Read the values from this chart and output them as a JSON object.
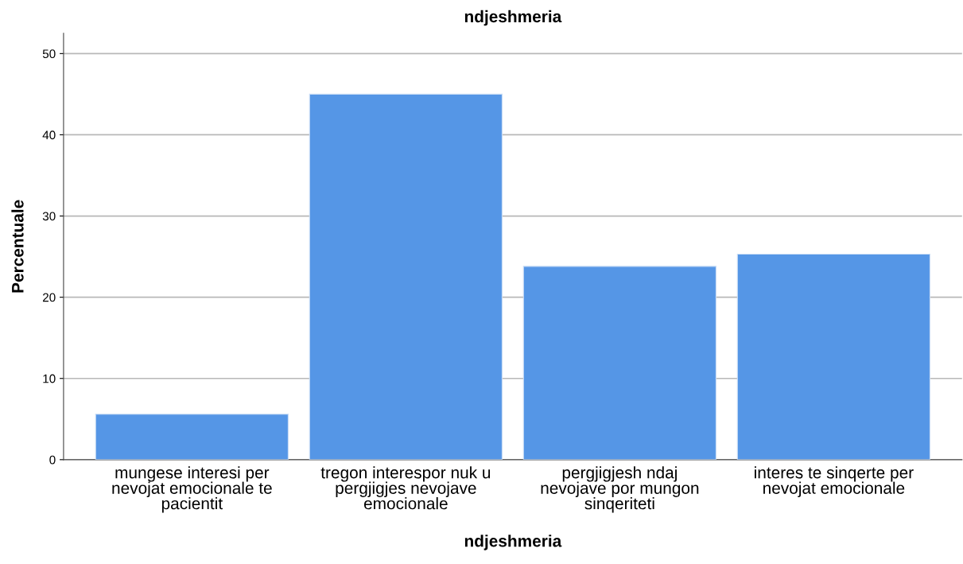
{
  "chart_data": {
    "type": "bar",
    "title": "ndjeshmeria",
    "xlabel": "ndjeshmeria",
    "ylabel": "Percentuale",
    "categories": [
      "mungese interesi per\nnevojat emocionale te\npacientit",
      "tregon interespor nuk u\npergjigjes nevojave\nemocionale",
      "pergjigjesh ndaj\nnevojave por mungon\nsinqeriteti",
      "interes te sinqerte per\nnevojat emocionale"
    ],
    "values": [
      5.6,
      45.0,
      23.8,
      25.3
    ],
    "color": "#5596e6",
    "ylim": [
      0,
      52.5
    ],
    "yticks": [
      0,
      10,
      20,
      30,
      40,
      50
    ],
    "grid": "y"
  }
}
